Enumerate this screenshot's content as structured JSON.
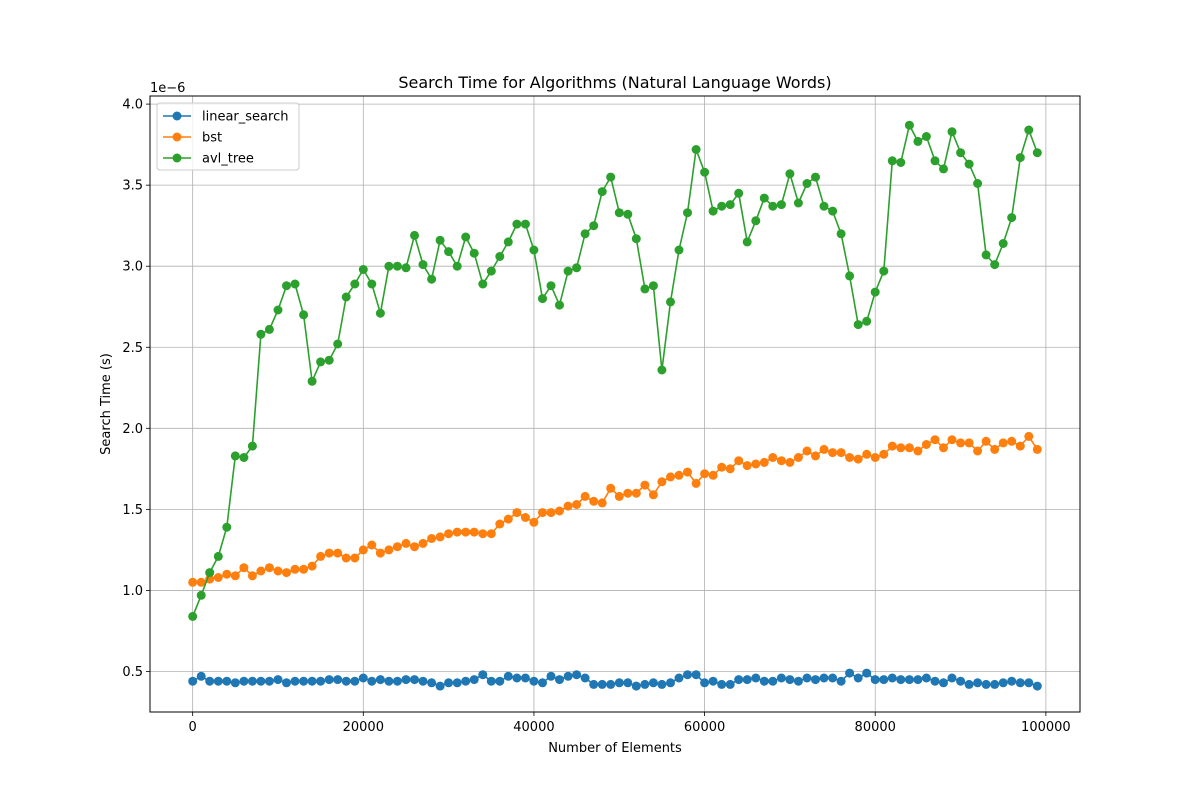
{
  "chart_data": {
    "type": "line",
    "title": "Search Time for Algorithms (Natural Language Words)",
    "xlabel": "Number of Elements",
    "ylabel": "Search Time (s)",
    "offset_text": "1e−6",
    "y_scale": 1e-06,
    "xlim": [
      -5000,
      104000
    ],
    "ylim": [
      0.25,
      4.05
    ],
    "xticks": [
      0,
      20000,
      40000,
      60000,
      80000,
      100000
    ],
    "xtick_labels": [
      "0",
      "20000",
      "40000",
      "60000",
      "80000",
      "100000"
    ],
    "yticks": [
      0.5,
      1.0,
      1.5,
      2.0,
      2.5,
      3.0,
      3.5,
      4.0
    ],
    "ytick_labels": [
      "0.5",
      "1.0",
      "1.5",
      "2.0",
      "2.5",
      "3.0",
      "3.5",
      "4.0"
    ],
    "grid": true,
    "legend_position": "top-left",
    "x": [
      0,
      1000,
      2000,
      3000,
      4000,
      5000,
      6000,
      7000,
      8000,
      9000,
      10000,
      11000,
      12000,
      13000,
      14000,
      15000,
      16000,
      17000,
      18000,
      19000,
      20000,
      21000,
      22000,
      23000,
      24000,
      25000,
      26000,
      27000,
      28000,
      29000,
      30000,
      31000,
      32000,
      33000,
      34000,
      35000,
      36000,
      37000,
      38000,
      39000,
      40000,
      41000,
      42000,
      43000,
      44000,
      45000,
      46000,
      47000,
      48000,
      49000,
      50000,
      51000,
      52000,
      53000,
      54000,
      55000,
      56000,
      57000,
      58000,
      59000,
      60000,
      61000,
      62000,
      63000,
      64000,
      65000,
      66000,
      67000,
      68000,
      69000,
      70000,
      71000,
      72000,
      73000,
      74000,
      75000,
      76000,
      77000,
      78000,
      79000,
      80000,
      81000,
      82000,
      83000,
      84000,
      85000,
      86000,
      87000,
      88000,
      89000,
      90000,
      91000,
      92000,
      93000,
      94000,
      95000,
      96000,
      97000,
      98000,
      99000
    ],
    "series": [
      {
        "name": "linear_search",
        "color": "#1f77b4",
        "values": [
          0.44,
          0.47,
          0.44,
          0.44,
          0.44,
          0.43,
          0.44,
          0.44,
          0.44,
          0.44,
          0.45,
          0.43,
          0.44,
          0.44,
          0.44,
          0.44,
          0.45,
          0.45,
          0.44,
          0.44,
          0.46,
          0.44,
          0.45,
          0.44,
          0.44,
          0.45,
          0.45,
          0.44,
          0.43,
          0.41,
          0.43,
          0.43,
          0.44,
          0.45,
          0.48,
          0.44,
          0.44,
          0.47,
          0.46,
          0.46,
          0.44,
          0.43,
          0.47,
          0.45,
          0.47,
          0.48,
          0.46,
          0.42,
          0.42,
          0.42,
          0.43,
          0.43,
          0.41,
          0.42,
          0.43,
          0.42,
          0.43,
          0.46,
          0.48,
          0.48,
          0.43,
          0.44,
          0.42,
          0.42,
          0.45,
          0.45,
          0.46,
          0.44,
          0.44,
          0.46,
          0.45,
          0.44,
          0.46,
          0.45,
          0.46,
          0.46,
          0.44,
          0.49,
          0.46,
          0.49,
          0.45,
          0.45,
          0.46,
          0.45,
          0.45,
          0.45,
          0.46,
          0.44,
          0.43,
          0.46,
          0.44,
          0.42,
          0.43,
          0.42,
          0.42,
          0.43,
          0.44,
          0.43,
          0.43,
          0.41
        ]
      },
      {
        "name": "bst",
        "color": "#ff7f0e",
        "values": [
          1.05,
          1.05,
          1.07,
          1.08,
          1.1,
          1.09,
          1.14,
          1.09,
          1.12,
          1.14,
          1.12,
          1.11,
          1.13,
          1.13,
          1.15,
          1.21,
          1.23,
          1.23,
          1.2,
          1.2,
          1.25,
          1.28,
          1.23,
          1.25,
          1.27,
          1.29,
          1.27,
          1.29,
          1.32,
          1.33,
          1.35,
          1.36,
          1.36,
          1.36,
          1.35,
          1.35,
          1.41,
          1.44,
          1.48,
          1.45,
          1.42,
          1.48,
          1.48,
          1.49,
          1.52,
          1.53,
          1.58,
          1.55,
          1.54,
          1.63,
          1.58,
          1.6,
          1.6,
          1.65,
          1.59,
          1.67,
          1.7,
          1.71,
          1.73,
          1.66,
          1.72,
          1.71,
          1.76,
          1.75,
          1.8,
          1.77,
          1.78,
          1.79,
          1.82,
          1.8,
          1.79,
          1.82,
          1.86,
          1.83,
          1.87,
          1.85,
          1.85,
          1.82,
          1.81,
          1.84,
          1.82,
          1.84,
          1.89,
          1.88,
          1.88,
          1.86,
          1.9,
          1.93,
          1.88,
          1.93,
          1.91,
          1.91,
          1.86,
          1.92,
          1.87,
          1.91,
          1.92,
          1.89,
          1.95,
          1.87
        ]
      },
      {
        "name": "avl_tree",
        "color": "#2ca02c",
        "values": [
          0.84,
          0.97,
          1.11,
          1.21,
          1.39,
          1.83,
          1.82,
          1.89,
          2.58,
          2.61,
          2.73,
          2.88,
          2.89,
          2.7,
          2.29,
          2.41,
          2.42,
          2.52,
          2.81,
          2.89,
          2.98,
          2.89,
          2.71,
          3.0,
          3.0,
          2.99,
          3.19,
          3.01,
          2.92,
          3.16,
          3.09,
          3.0,
          3.18,
          3.08,
          2.89,
          2.97,
          3.06,
          3.15,
          3.26,
          3.26,
          3.1,
          2.8,
          2.88,
          2.76,
          2.97,
          2.99,
          3.2,
          3.25,
          3.46,
          3.55,
          3.33,
          3.32,
          3.17,
          2.86,
          2.88,
          2.36,
          2.78,
          3.1,
          3.33,
          3.72,
          3.58,
          3.34,
          3.37,
          3.38,
          3.45,
          3.15,
          3.28,
          3.42,
          3.37,
          3.38,
          3.57,
          3.39,
          3.51,
          3.55,
          3.37,
          3.34,
          3.2,
          2.94,
          2.64,
          2.66,
          2.84,
          2.97,
          3.65,
          3.64,
          3.87,
          3.77,
          3.8,
          3.65,
          3.6,
          3.83,
          3.7,
          3.63,
          3.51,
          3.07,
          3.01,
          3.14,
          3.3,
          3.67,
          3.84,
          3.7
        ]
      }
    ]
  }
}
